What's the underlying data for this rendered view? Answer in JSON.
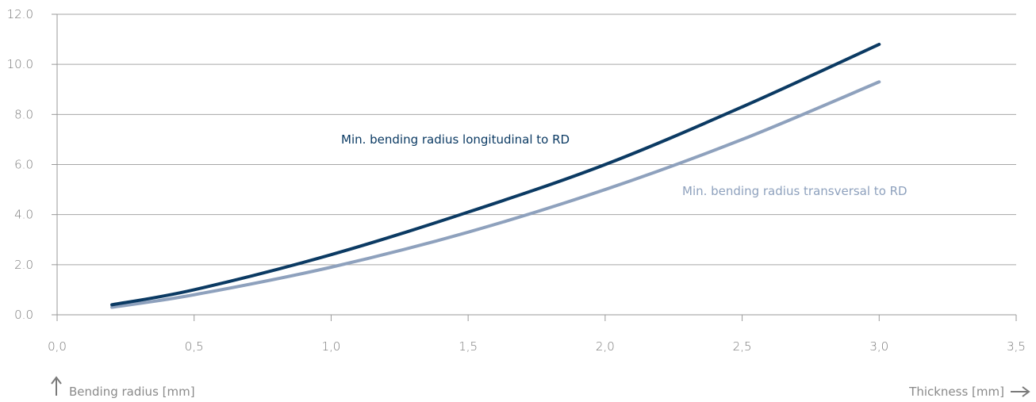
{
  "chart_data": {
    "type": "line",
    "title": "",
    "xlabel": "Thickness [mm]",
    "ylabel": "Bending radius [mm]",
    "xlim": [
      0,
      3.5
    ],
    "ylim": [
      0,
      12
    ],
    "x_ticks": [
      0,
      0.5,
      1.0,
      1.5,
      2.0,
      2.5,
      3.0,
      3.5
    ],
    "x_tick_labels": [
      "0,0",
      "0,5",
      "1,0",
      "1,5",
      "2,0",
      "2,5",
      "3,0",
      "3,5"
    ],
    "y_ticks": [
      0,
      2,
      4,
      6,
      8,
      10,
      12
    ],
    "y_tick_labels": [
      "0.0",
      "2.0",
      "4.0",
      "6.0",
      "8.0",
      "10.0",
      "12.0"
    ],
    "grid": "horizontal",
    "series": [
      {
        "name": "Min. bending radius longitudinal to RD",
        "color": "#0b3a63",
        "x": [
          0.2,
          0.5,
          1.0,
          1.5,
          2.0,
          2.5,
          3.0
        ],
        "y": [
          0.4,
          1.0,
          2.4,
          4.1,
          6.0,
          8.3,
          10.8
        ]
      },
      {
        "name": "Min. bending radius transversal to RD",
        "color": "#8ea1bd",
        "x": [
          0.2,
          0.5,
          1.0,
          1.5,
          2.0,
          2.5,
          3.0
        ],
        "y": [
          0.3,
          0.8,
          1.9,
          3.3,
          5.0,
          7.0,
          9.3
        ]
      }
    ],
    "colors": {
      "axis": "#9a9a9a",
      "grid": "#a6a6a6",
      "tick_text": "#7a7a7a",
      "caption_text": "#8a8a8a"
    }
  }
}
